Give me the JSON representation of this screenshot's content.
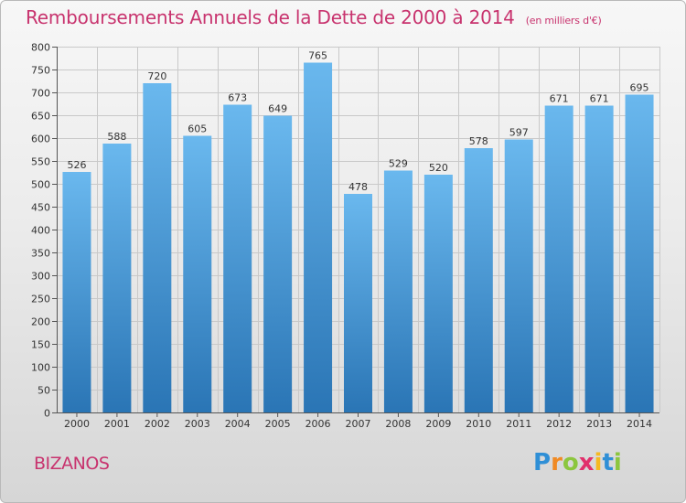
{
  "title": "Remboursements Annuels de la Dette de 2000 à 2014",
  "subtitle": "(en milliers d'€)",
  "town": "BIZANOS",
  "logo": {
    "letters": [
      "P",
      "r",
      "o",
      "x",
      "i",
      "t",
      "i"
    ],
    "colors": [
      "#2f8fd6",
      "#f08a24",
      "#8cc63e",
      "#e1306c",
      "#f5b921",
      "#2f8fd6",
      "#8cc63e"
    ]
  },
  "colors": {
    "title": "#c8336e",
    "bar_top": "#6ab8ee",
    "bar_bottom": "#2a75b5",
    "grid": "#c9c9c9",
    "axis": "#555555"
  },
  "chart_data": {
    "type": "bar",
    "title": "Remboursements Annuels de la Dette de 2000 à 2014",
    "xlabel": "",
    "ylabel": "",
    "categories": [
      "2000",
      "2001",
      "2002",
      "2003",
      "2004",
      "2005",
      "2006",
      "2007",
      "2008",
      "2009",
      "2010",
      "2011",
      "2012",
      "2013",
      "2014"
    ],
    "values": [
      526,
      588,
      720,
      605,
      673,
      649,
      765,
      478,
      529,
      520,
      578,
      597,
      671,
      671,
      695
    ],
    "ylim": [
      0,
      800
    ],
    "yticks": [
      0,
      50,
      100,
      150,
      200,
      250,
      300,
      350,
      400,
      450,
      500,
      550,
      600,
      650,
      700,
      750,
      800
    ],
    "grid": true
  }
}
